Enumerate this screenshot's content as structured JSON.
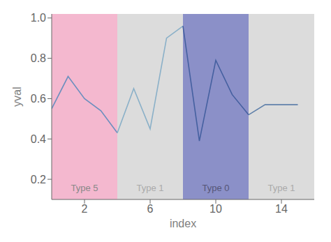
{
  "chart_data": {
    "type": "line",
    "xlabel": "index",
    "ylabel": "yval",
    "x": [
      0,
      1,
      2,
      3,
      4,
      5,
      6,
      7,
      8,
      9,
      10,
      11,
      12,
      13,
      14,
      15
    ],
    "series": [
      {
        "color": "#6b8fbe",
        "values": [
          0.55,
          0.71,
          0.6,
          0.54,
          0.43,
          null,
          null,
          null,
          null,
          null,
          null,
          null,
          null,
          null,
          null,
          null
        ]
      },
      {
        "color": "#8ab0c8",
        "values": [
          null,
          null,
          null,
          null,
          0.43,
          0.65,
          0.45,
          0.9,
          0.96,
          null,
          null,
          null,
          null,
          null,
          null,
          null
        ]
      },
      {
        "color": "#4560a0",
        "values": [
          null,
          null,
          null,
          null,
          null,
          null,
          null,
          null,
          0.96,
          0.39,
          0.79,
          0.62,
          0.52,
          null,
          null,
          null
        ]
      },
      {
        "color": "#6080aa",
        "values": [
          null,
          null,
          null,
          null,
          null,
          null,
          null,
          null,
          null,
          null,
          null,
          null,
          0.52,
          0.57,
          0.57,
          0.57
        ]
      }
    ],
    "regions": [
      {
        "xmin": 0,
        "xmax": 4,
        "color": "#f4b8cf",
        "label": "Type 5",
        "label_color": "#888888",
        "label_y": 0.14
      },
      {
        "xmin": 4,
        "xmax": 8,
        "color": "#dcdcdc",
        "label": "Type 1",
        "label_color": "#aaaaaa",
        "label_y": 0.14
      },
      {
        "xmin": 8,
        "xmax": 12,
        "color": "#8b90c8",
        "label": "Type 0",
        "label_color": "#555577",
        "label_y": 0.14
      },
      {
        "xmin": 12,
        "xmax": 16,
        "color": "#dcdcdc",
        "label": "Type 1",
        "label_color": "#aaaaaa",
        "label_y": 0.14
      }
    ],
    "xlim": [
      0,
      16
    ],
    "ylim": [
      0.1,
      1.02
    ],
    "xticks": [
      2,
      6,
      10,
      14
    ],
    "yticks": [
      0.2,
      0.4,
      0.6,
      0.8,
      {
        "value": 1.0,
        "label": "1.0"
      }
    ],
    "grid": false
  }
}
